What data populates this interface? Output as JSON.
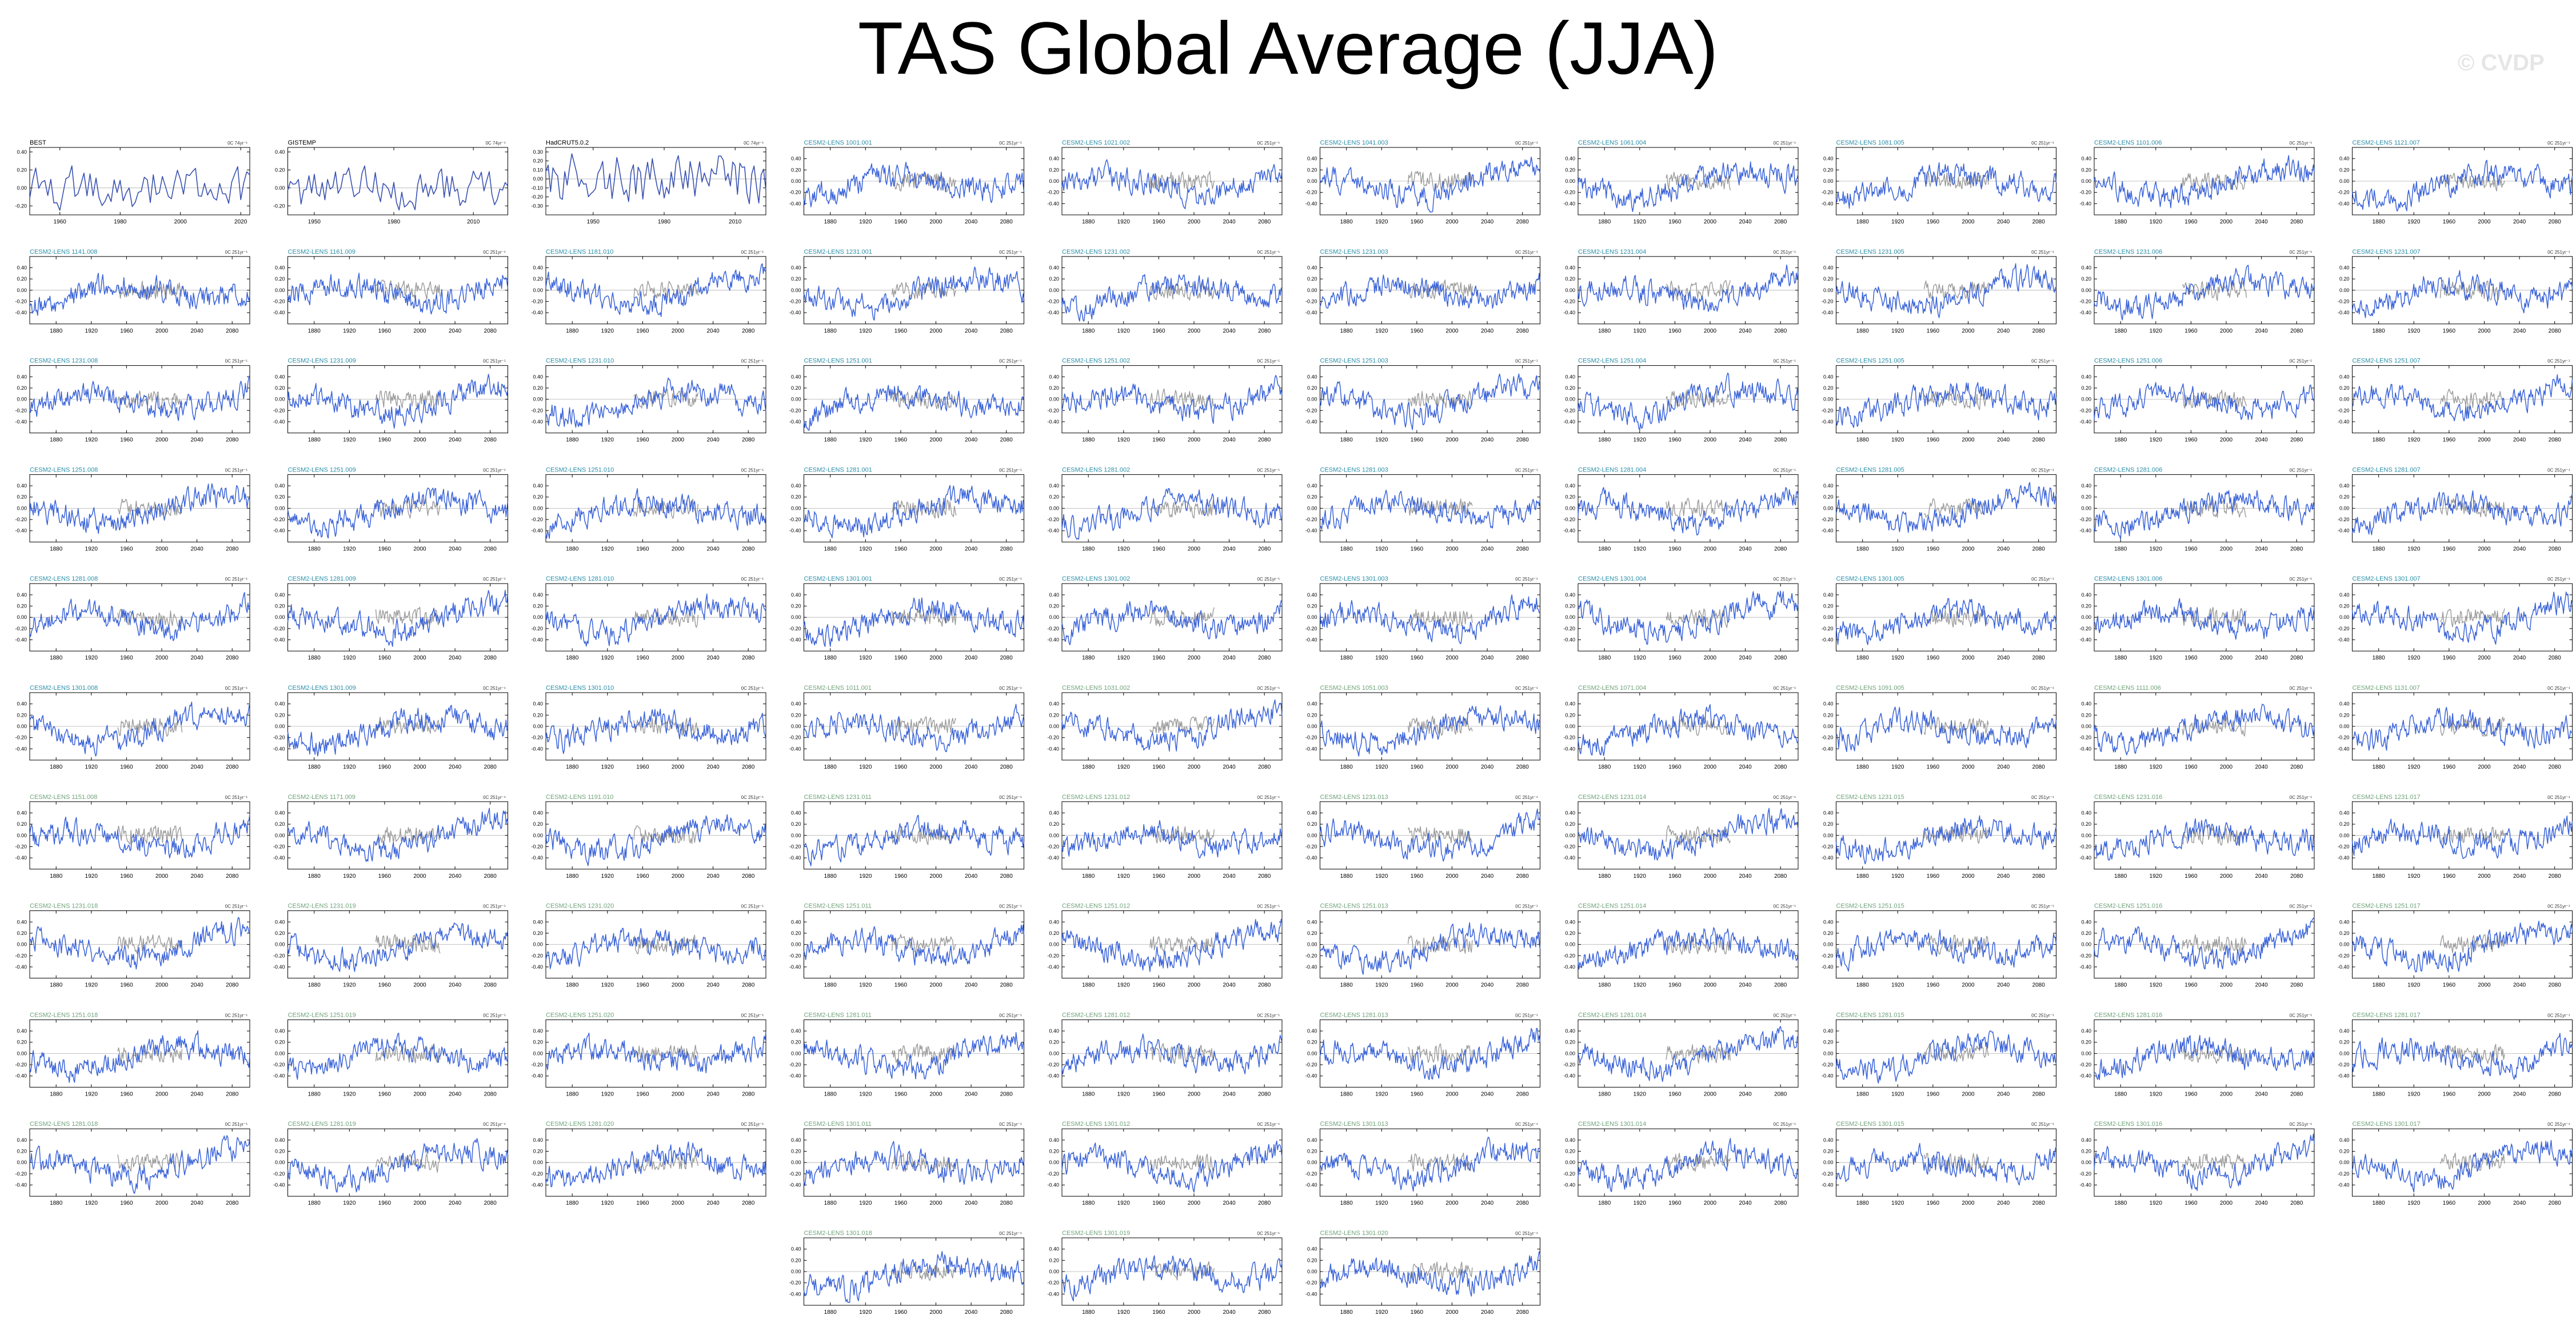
{
  "title": "TAS Global Average (JJA)",
  "watermark": "© CVDP",
  "colors": {
    "model_line": "#3a63d8",
    "obs_line": "#3a52b0",
    "obs_reference": "#9a9a9a",
    "obs_label": "#000000",
    "model_label": "#2a8fa8",
    "model_label_alt": "#6fa37a"
  },
  "chart_data": {
    "type": "line",
    "panel_count": 103,
    "panels": [
      {
        "title": "BEST",
        "kind": "obs",
        "trend": "0C 74yr⁻¹",
        "xlim": [
          1950,
          2023
        ],
        "xticks": [
          1960,
          1980,
          2000,
          2020
        ],
        "yticks": [
          -0.2,
          0.0,
          0.2,
          0.4
        ]
      },
      {
        "title": "GISTEMP",
        "kind": "obs",
        "trend": "0C 74yr⁻¹",
        "xlim": [
          1940,
          2023
        ],
        "xticks": [
          1950,
          1980,
          2010
        ],
        "yticks": [
          -0.2,
          0.0,
          0.2,
          0.4
        ]
      },
      {
        "title": "HadCRUT5.0.2",
        "kind": "obs",
        "trend": "0C 74yr⁻¹",
        "xlim": [
          1930,
          2023
        ],
        "xticks": [
          1950,
          1980,
          2010
        ],
        "yticks": [
          -0.3,
          -0.2,
          -0.1,
          0.0,
          0.1,
          0.2,
          0.3
        ]
      },
      {
        "title": "CESM2-LENS 1001.001",
        "trend": "0C 251yr⁻¹"
      },
      {
        "title": "CESM2-LENS 1021.002",
        "trend": "0C 251yr⁻¹"
      },
      {
        "title": "CESM2-LENS 1041.003",
        "trend": "0C 251yr⁻¹"
      },
      {
        "title": "CESM2-LENS 1061.004",
        "trend": "0C 251yr⁻¹"
      },
      {
        "title": "CESM2-LENS 1081.005",
        "trend": "0C 251yr⁻¹"
      },
      {
        "title": "CESM2-LENS 1101.006",
        "trend": "0C 251yr⁻¹"
      },
      {
        "title": "CESM2-LENS 1121.007",
        "trend": "0C 251yr⁻¹"
      },
      {
        "title": "CESM2-LENS 1141.008",
        "trend": "0C 251yr⁻¹"
      },
      {
        "title": "CESM2-LENS 1161.009",
        "trend": "0C 251yr⁻¹"
      },
      {
        "title": "CESM2-LENS 1181.010",
        "trend": "0C 251yr⁻¹"
      },
      {
        "title": "CESM2-LENS 1231.001",
        "trend": "0C 251yr⁻¹"
      },
      {
        "title": "CESM2-LENS 1231.002",
        "trend": "0C 251yr⁻¹"
      },
      {
        "title": "CESM2-LENS 1231.003",
        "trend": "0C 251yr⁻¹"
      },
      {
        "title": "CESM2-LENS 1231.004",
        "trend": "0C 251yr⁻¹"
      },
      {
        "title": "CESM2-LENS 1231.005",
        "trend": "0C 251yr⁻¹"
      },
      {
        "title": "CESM2-LENS 1231.006",
        "trend": "0C 251yr⁻¹"
      },
      {
        "title": "CESM2-LENS 1231.007",
        "trend": "0C 251yr⁻¹"
      },
      {
        "title": "CESM2-LENS 1231.008",
        "trend": "0C 251yr⁻¹"
      },
      {
        "title": "CESM2-LENS 1231.009",
        "trend": "0C 251yr⁻¹"
      },
      {
        "title": "CESM2-LENS 1231.010",
        "trend": "0C 251yr⁻¹"
      },
      {
        "title": "CESM2-LENS 1251.001",
        "trend": "0C 251yr⁻¹"
      },
      {
        "title": "CESM2-LENS 1251.002",
        "trend": "0C 251yr⁻¹"
      },
      {
        "title": "CESM2-LENS 1251.003",
        "trend": "0C 251yr⁻¹"
      },
      {
        "title": "CESM2-LENS 1251.004",
        "trend": "0C 251yr⁻¹"
      },
      {
        "title": "CESM2-LENS 1251.005",
        "trend": "0C 251yr⁻¹"
      },
      {
        "title": "CESM2-LENS 1251.006",
        "trend": "0C 251yr⁻¹"
      },
      {
        "title": "CESM2-LENS 1251.007",
        "trend": "0C 251yr⁻¹"
      },
      {
        "title": "CESM2-LENS 1251.008",
        "trend": "0C 251yr⁻¹"
      },
      {
        "title": "CESM2-LENS 1251.009",
        "trend": "0C 251yr⁻¹"
      },
      {
        "title": "CESM2-LENS 1251.010",
        "trend": "0C 251yr⁻¹"
      },
      {
        "title": "CESM2-LENS 1281.001",
        "trend": "0C 251yr⁻¹"
      },
      {
        "title": "CESM2-LENS 1281.002",
        "trend": "0C 251yr⁻¹"
      },
      {
        "title": "CESM2-LENS 1281.003",
        "trend": "0C 251yr⁻¹"
      },
      {
        "title": "CESM2-LENS 1281.004",
        "trend": "0C 251yr⁻¹"
      },
      {
        "title": "CESM2-LENS 1281.005",
        "trend": "0C 251yr⁻¹"
      },
      {
        "title": "CESM2-LENS 1281.006",
        "trend": "0C 251yr⁻¹"
      },
      {
        "title": "CESM2-LENS 1281.007",
        "trend": "0C 251yr⁻¹"
      },
      {
        "title": "CESM2-LENS 1281.008",
        "trend": "0C 251yr⁻¹"
      },
      {
        "title": "CESM2-LENS 1281.009",
        "trend": "0C 251yr⁻¹"
      },
      {
        "title": "CESM2-LENS 1281.010",
        "trend": "0C 251yr⁻¹"
      },
      {
        "title": "CESM2-LENS 1301.001",
        "trend": "0C 251yr⁻¹"
      },
      {
        "title": "CESM2-LENS 1301.002",
        "trend": "0C 251yr⁻¹"
      },
      {
        "title": "CESM2-LENS 1301.003",
        "trend": "0C 251yr⁻¹"
      },
      {
        "title": "CESM2-LENS 1301.004",
        "trend": "0C 251yr⁻¹"
      },
      {
        "title": "CESM2-LENS 1301.005",
        "trend": "0C 251yr⁻¹"
      },
      {
        "title": "CESM2-LENS 1301.006",
        "trend": "0C 251yr⁻¹"
      },
      {
        "title": "CESM2-LENS 1301.007",
        "trend": "0C 251yr⁻¹"
      },
      {
        "title": "CESM2-LENS 1301.008",
        "trend": "0C 251yr⁻¹"
      },
      {
        "title": "CESM2-LENS 1301.009",
        "trend": "0C 251yr⁻¹"
      },
      {
        "title": "CESM2-LENS 1301.010",
        "trend": "0C 251yr⁻¹"
      },
      {
        "title": "CESM2-LENS 1011.001",
        "alt": true,
        "trend": "0C 251yr⁻¹"
      },
      {
        "title": "CESM2-LENS 1031.002",
        "alt": true,
        "trend": "0C 251yr⁻¹"
      },
      {
        "title": "CESM2-LENS 1051.003",
        "alt": true,
        "trend": "0C 251yr⁻¹"
      },
      {
        "title": "CESM2-LENS 1071.004",
        "alt": true,
        "trend": "0C 251yr⁻¹"
      },
      {
        "title": "CESM2-LENS 1091.005",
        "alt": true,
        "trend": "0C 251yr⁻¹"
      },
      {
        "title": "CESM2-LENS 1111.006",
        "alt": true,
        "trend": "0C 251yr⁻¹"
      },
      {
        "title": "CESM2-LENS 1131.007",
        "alt": true,
        "trend": "0C 251yr⁻¹"
      },
      {
        "title": "CESM2-LENS 1151.008",
        "alt": true,
        "trend": "0C 251yr⁻¹"
      },
      {
        "title": "CESM2-LENS 1171.009",
        "alt": true,
        "trend": "0C 251yr⁻¹"
      },
      {
        "title": "CESM2-LENS 1191.010",
        "alt": true,
        "trend": "0C 251yr⁻¹"
      },
      {
        "title": "CESM2-LENS 1231.011",
        "alt": true,
        "trend": "0C 251yr⁻¹"
      },
      {
        "title": "CESM2-LENS 1231.012",
        "alt": true,
        "trend": "0C 251yr⁻¹"
      },
      {
        "title": "CESM2-LENS 1231.013",
        "alt": true,
        "trend": "0C 251yr⁻¹"
      },
      {
        "title": "CESM2-LENS 1231.014",
        "alt": true,
        "trend": "0C 251yr⁻¹"
      },
      {
        "title": "CESM2-LENS 1231.015",
        "alt": true,
        "trend": "0C 251yr⁻¹"
      },
      {
        "title": "CESM2-LENS 1231.016",
        "alt": true,
        "trend": "0C 251yr⁻¹"
      },
      {
        "title": "CESM2-LENS 1231.017",
        "alt": true,
        "trend": "0C 251yr⁻¹"
      },
      {
        "title": "CESM2-LENS 1231.018",
        "alt": true,
        "trend": "0C 251yr⁻¹"
      },
      {
        "title": "CESM2-LENS 1231.019",
        "alt": true,
        "trend": "0C 251yr⁻¹"
      },
      {
        "title": "CESM2-LENS 1231.020",
        "alt": true,
        "trend": "0C 251yr⁻¹"
      },
      {
        "title": "CESM2-LENS 1251.011",
        "alt": true,
        "trend": "0C 251yr⁻¹"
      },
      {
        "title": "CESM2-LENS 1251.012",
        "alt": true,
        "trend": "0C 251yr⁻¹"
      },
      {
        "title": "CESM2-LENS 1251.013",
        "alt": true,
        "trend": "0C 251yr⁻¹"
      },
      {
        "title": "CESM2-LENS 1251.014",
        "alt": true,
        "trend": "0C 251yr⁻¹"
      },
      {
        "title": "CESM2-LENS 1251.015",
        "alt": true,
        "trend": "0C 251yr⁻¹"
      },
      {
        "title": "CESM2-LENS 1251.016",
        "alt": true,
        "trend": "0C 251yr⁻¹"
      },
      {
        "title": "CESM2-LENS 1251.017",
        "alt": true,
        "trend": "0C 251yr⁻¹"
      },
      {
        "title": "CESM2-LENS 1251.018",
        "alt": true,
        "trend": "0C 251yr⁻¹"
      },
      {
        "title": "CESM2-LENS 1251.019",
        "alt": true,
        "trend": "0C 251yr⁻¹"
      },
      {
        "title": "CESM2-LENS 1251.020",
        "alt": true,
        "trend": "0C 251yr⁻¹"
      },
      {
        "title": "CESM2-LENS 1281.011",
        "alt": true,
        "trend": "0C 251yr⁻¹"
      },
      {
        "title": "CESM2-LENS 1281.012",
        "alt": true,
        "trend": "0C 251yr⁻¹"
      },
      {
        "title": "CESM2-LENS 1281.013",
        "alt": true,
        "trend": "0C 251yr⁻¹"
      },
      {
        "title": "CESM2-LENS 1281.014",
        "alt": true,
        "trend": "0C 251yr⁻¹"
      },
      {
        "title": "CESM2-LENS 1281.015",
        "alt": true,
        "trend": "0C 251yr⁻¹"
      },
      {
        "title": "CESM2-LENS 1281.016",
        "alt": true,
        "trend": "0C 251yr⁻¹"
      },
      {
        "title": "CESM2-LENS 1281.017",
        "alt": true,
        "trend": "0C 251yr⁻¹"
      },
      {
        "title": "CESM2-LENS 1281.018",
        "alt": true,
        "trend": "0C 251yr⁻¹"
      },
      {
        "title": "CESM2-LENS 1281.019",
        "alt": true,
        "trend": "0C 251yr⁻¹"
      },
      {
        "title": "CESM2-LENS 1281.020",
        "alt": true,
        "trend": "0C 251yr⁻¹"
      },
      {
        "title": "CESM2-LENS 1301.011",
        "alt": true,
        "trend": "0C 251yr⁻¹"
      },
      {
        "title": "CESM2-LENS 1301.012",
        "alt": true,
        "trend": "0C 251yr⁻¹"
      },
      {
        "title": "CESM2-LENS 1301.013",
        "alt": true,
        "trend": "0C 251yr⁻¹"
      },
      {
        "title": "CESM2-LENS 1301.014",
        "alt": true,
        "trend": "0C 251yr⁻¹"
      },
      {
        "title": "CESM2-LENS 1301.015",
        "alt": true,
        "trend": "0C 251yr⁻¹"
      },
      {
        "title": "CESM2-LENS 1301.016",
        "alt": true,
        "trend": "0C 251yr⁻¹"
      },
      {
        "title": "CESM2-LENS 1301.017",
        "alt": true,
        "trend": "0C 251yr⁻¹"
      },
      {
        "title": "CESM2-LENS 1301.018",
        "alt": true,
        "trend": "0C 251yr⁻¹"
      },
      {
        "title": "CESM2-LENS 1301.019",
        "alt": true,
        "trend": "0C 251yr⁻¹"
      },
      {
        "title": "CESM2-LENS 1301.020",
        "alt": true,
        "trend": "0C 251yr⁻¹"
      }
    ],
    "model_defaults": {
      "xlim": [
        1850,
        2100
      ],
      "xticks": [
        1880,
        1920,
        1960,
        2000,
        2040,
        2080
      ],
      "ylim": [
        -0.6,
        0.6
      ],
      "yticks": [
        -0.4,
        -0.2,
        0.0,
        0.2,
        0.4
      ],
      "obs_overlay_years": [
        1950,
        2023
      ]
    },
    "xlabel": "",
    "ylabel": "",
    "grid": false,
    "legend": "none"
  }
}
